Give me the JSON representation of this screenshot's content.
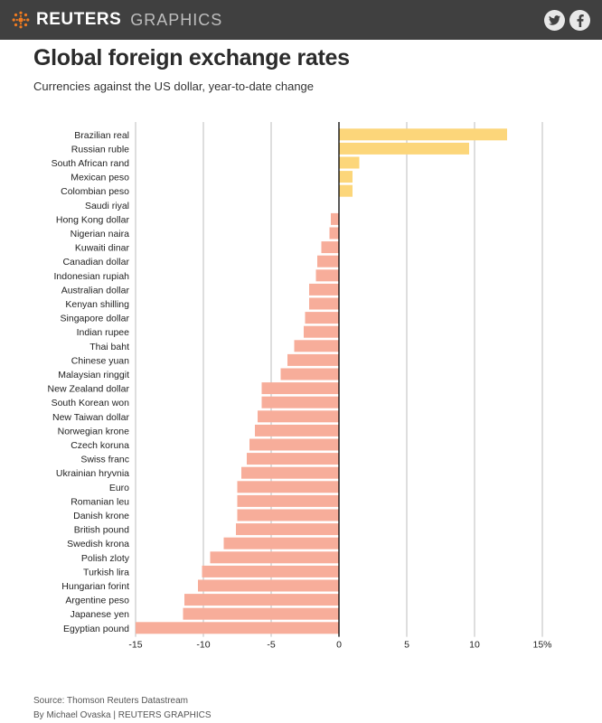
{
  "header": {
    "brand": "REUTERS",
    "section": "GRAPHICS",
    "share_twitter_icon": "twitter-icon",
    "share_facebook_icon": "facebook-icon"
  },
  "title": "Global foreign exchange rates",
  "subtitle": "Currencies against the US dollar, year-to-date change",
  "footer": {
    "source": "Source: Thomson Reuters Datastream",
    "byline": "By Michael Ovaska | REUTERS GRAPHICS"
  },
  "colors": {
    "positive": "#fcd67a",
    "negative": "#f7ad9a",
    "gridline": "#bdbdbd",
    "zeroline": "#000000",
    "header_bg": "#404040",
    "logo": "#f07b21"
  },
  "chart_data": {
    "type": "bar",
    "orientation": "horizontal",
    "xlim": [
      -15,
      15
    ],
    "xticks": [
      -15,
      -10,
      -5,
      0,
      5,
      10,
      15
    ],
    "xtick_labels": [
      "-15",
      "-10",
      "-5",
      "0",
      "5",
      "10",
      "15%"
    ],
    "grid": true,
    "categories": [
      "Brazilian real",
      "Russian ruble",
      "South African rand",
      "Mexican peso",
      "Colombian peso",
      "Saudi riyal",
      "Hong Kong dollar",
      "Nigerian naira",
      "Kuwaiti dinar",
      "Canadian dollar",
      "Indonesian rupiah",
      "Australian dollar",
      "Kenyan shilling",
      "Singapore dollar",
      "Indian rupee",
      "Thai baht",
      "Chinese yuan",
      "Malaysian ringgit",
      "New Zealand dollar",
      "South Korean won",
      "New Taiwan dollar",
      "Norwegian krone",
      "Czech koruna",
      "Swiss franc",
      "Ukrainian hryvnia",
      "Euro",
      "Romanian leu",
      "Danish krone",
      "British pound",
      "Swedish krona",
      "Polish zloty",
      "Turkish lira",
      "Hungarian forint",
      "Argentine peso",
      "Japanese yen",
      "Egyptian pound"
    ],
    "values": [
      12.4,
      9.6,
      1.5,
      1.0,
      1.0,
      0.0,
      -0.6,
      -0.7,
      -1.3,
      -1.6,
      -1.7,
      -2.2,
      -2.2,
      -2.5,
      -2.6,
      -3.3,
      -3.8,
      -4.3,
      -5.7,
      -5.7,
      -6.0,
      -6.2,
      -6.6,
      -6.8,
      -7.2,
      -7.5,
      -7.5,
      -7.5,
      -7.6,
      -8.5,
      -9.5,
      -10.1,
      -10.4,
      -11.4,
      -11.5,
      -15.0
    ]
  }
}
